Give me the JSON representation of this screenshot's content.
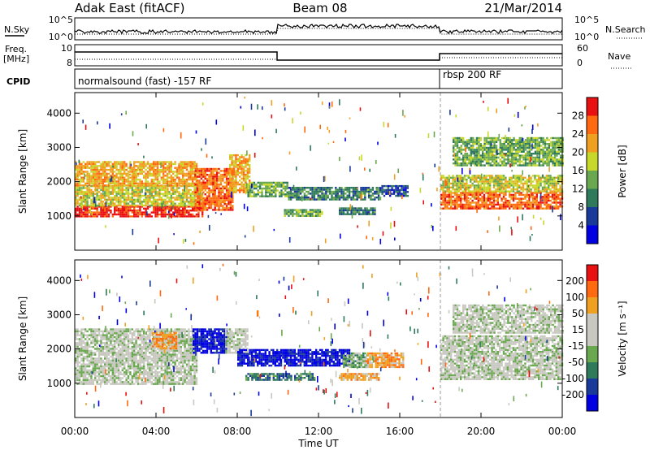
{
  "header": {
    "site": "Adak East (fitACF)",
    "beam": "Beam 08",
    "date": "21/Mar/2014"
  },
  "noise_panel": {
    "left_label": "N.Sky",
    "right_label": "N.Search",
    "ytick_top": "10^5",
    "ytick_bottom": "10^0"
  },
  "freq_panel": {
    "left_label_1": "Freq.",
    "left_label_2": "[MHz]",
    "right_label": "Nave",
    "left_ticks": [
      "10",
      "8"
    ],
    "right_ticks": [
      "60",
      "0"
    ]
  },
  "cpid_panel": {
    "label": "CPID",
    "mode_1": "normalsound (fast) -157 RF",
    "mode_2": "rbsp 200 RF",
    "mode_change_time_hr": 18
  },
  "xaxis": {
    "title": "Time UT",
    "ticks": [
      "00:00",
      "04:00",
      "08:00",
      "12:00",
      "16:00",
      "20:00",
      "00:00"
    ]
  },
  "chart_data": [
    {
      "type": "heatmap",
      "title": "Power",
      "ylabel": "Slant Range [km]",
      "yticks": [
        1000,
        2000,
        3000,
        4000
      ],
      "ylim": [
        0,
        4600
      ],
      "xlim": [
        0,
        24
      ],
      "colorbar_label": "Power [dB]",
      "colorbar_ticks": [
        "4",
        "8",
        "12",
        "16",
        "20",
        "24",
        "28"
      ],
      "colors": [
        "#0000e0",
        "#1a3a9a",
        "#2e7a5a",
        "#6aa84f",
        "#c8d82a",
        "#f0a020",
        "#ff6a10",
        "#e81010"
      ],
      "echo_bands": [
        {
          "t0": 0.0,
          "t1": 6.3,
          "r0": 1000,
          "r1": 1300,
          "level": 7
        },
        {
          "t0": 0.0,
          "t1": 6.3,
          "r0": 1300,
          "r1": 1900,
          "level": 4
        },
        {
          "t0": 0.0,
          "t1": 6.0,
          "r0": 1900,
          "r1": 2600,
          "level": 5
        },
        {
          "t0": 5.9,
          "t1": 7.8,
          "r0": 1200,
          "r1": 2400,
          "level": 6
        },
        {
          "t0": 7.6,
          "t1": 8.6,
          "r0": 1700,
          "r1": 2800,
          "level": 5
        },
        {
          "t0": 8.5,
          "t1": 10.5,
          "r0": 1600,
          "r1": 2000,
          "level": 3
        },
        {
          "t0": 10.5,
          "t1": 15.0,
          "r0": 1500,
          "r1": 1850,
          "level": 2
        },
        {
          "t0": 15.0,
          "t1": 16.4,
          "r0": 1600,
          "r1": 1900,
          "level": 1
        },
        {
          "t0": 10.3,
          "t1": 12.2,
          "r0": 1000,
          "r1": 1200,
          "level": 3
        },
        {
          "t0": 13.0,
          "t1": 14.8,
          "r0": 1050,
          "r1": 1250,
          "level": 2
        },
        {
          "t0": 18.0,
          "t1": 24.0,
          "r0": 1200,
          "r1": 1700,
          "level": 6
        },
        {
          "t0": 18.0,
          "t1": 24.0,
          "r0": 1700,
          "r1": 2200,
          "level": 4
        },
        {
          "t0": 18.6,
          "t1": 24.0,
          "r0": 2500,
          "r1": 3300,
          "level": 3
        }
      ]
    },
    {
      "type": "heatmap",
      "title": "Velocity",
      "ylabel": "Slant Range [km]",
      "yticks": [
        1000,
        2000,
        3000,
        4000
      ],
      "ylim": [
        0,
        4600
      ],
      "xlim": [
        0,
        24
      ],
      "colorbar_label": "Velocity [m s⁻¹]",
      "colorbar_ticks": [
        "200",
        "100",
        "50",
        "15",
        "-15",
        "-50",
        "-100",
        "-200"
      ],
      "colors": [
        "#0000e0",
        "#1a3a9a",
        "#2e7a5a",
        "#6aa84f",
        "#c8c8c0",
        "#c8c8c0",
        "#f0a020",
        "#ff6a10",
        "#e81010"
      ],
      "echo_bands": [
        {
          "t0": 0.0,
          "t1": 6.0,
          "r0": 1000,
          "r1": 2600,
          "level": 4
        },
        {
          "t0": 3.8,
          "t1": 5.0,
          "r0": 2000,
          "r1": 2500,
          "level": 6
        },
        {
          "t0": 5.8,
          "t1": 7.5,
          "r0": 1900,
          "r1": 2600,
          "level": 0
        },
        {
          "t0": 7.4,
          "t1": 8.5,
          "r0": 1900,
          "r1": 2600,
          "level": 4
        },
        {
          "t0": 8.0,
          "t1": 13.5,
          "r0": 1500,
          "r1": 2000,
          "level": 0
        },
        {
          "t0": 13.2,
          "t1": 14.4,
          "r0": 1500,
          "r1": 1900,
          "level": 3
        },
        {
          "t0": 14.3,
          "t1": 16.2,
          "r0": 1500,
          "r1": 1900,
          "level": 6
        },
        {
          "t0": 8.4,
          "t1": 11.8,
          "r0": 1100,
          "r1": 1300,
          "level": 2
        },
        {
          "t0": 13.0,
          "t1": 15.0,
          "r0": 1100,
          "r1": 1300,
          "level": 6
        },
        {
          "t0": 18.0,
          "t1": 24.0,
          "r0": 1100,
          "r1": 2400,
          "level": 4
        },
        {
          "t0": 18.6,
          "t1": 24.0,
          "r0": 2500,
          "r1": 3300,
          "level": 4
        }
      ]
    }
  ]
}
